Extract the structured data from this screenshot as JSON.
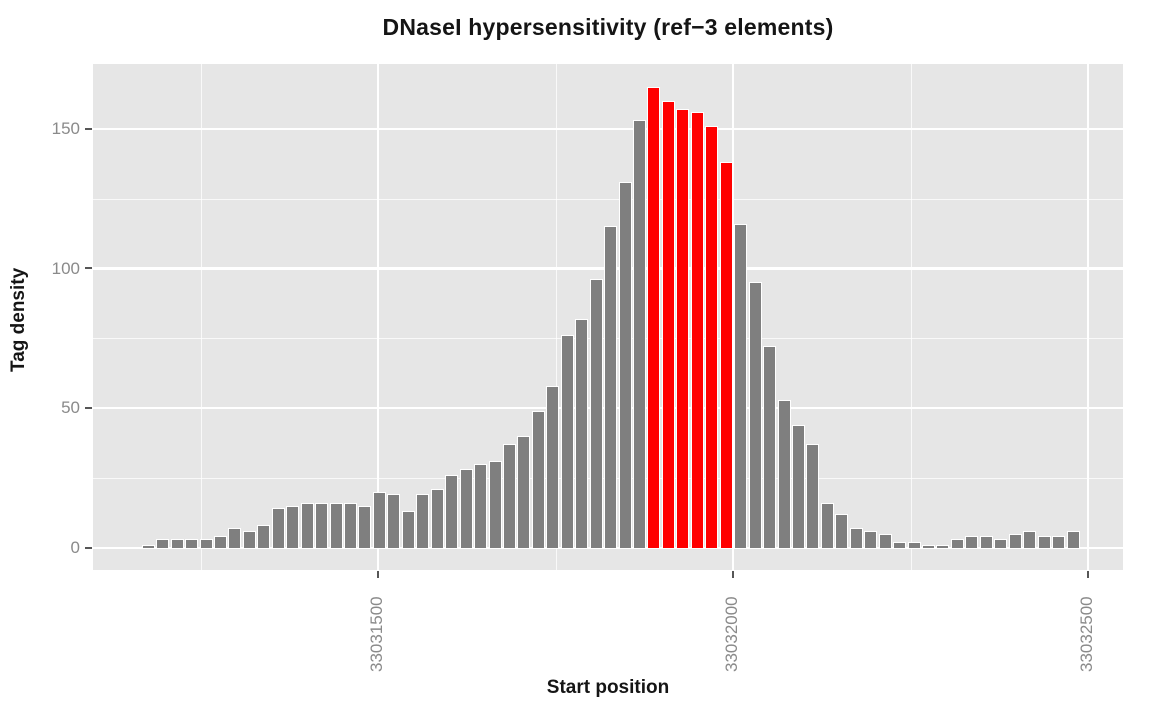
{
  "title": "DNaseI hypersensitivity (ref−3 elements)",
  "axes": {
    "x": {
      "label": "Start position",
      "tick_labels": [
        "33031500",
        "33032000",
        "33032500"
      ]
    },
    "y": {
      "label": "Tag density",
      "tick_labels": [
        "0",
        "50",
        "100",
        "150"
      ]
    }
  },
  "chart_data": {
    "type": "bar",
    "title": "DNaseI hypersensitivity (ref−3 elements)",
    "xlabel": "Start position",
    "ylabel": "Tag density",
    "x_tick_values": [
      33031500,
      33032000,
      33032500
    ],
    "y_tick_values": [
      0,
      50,
      100,
      150
    ],
    "ylim": [
      0,
      173
    ],
    "grid": "on",
    "legend": "none",
    "bin_width_bp_estimated": 20,
    "first_bin_start_estimated": 33031170,
    "values": [
      1,
      3,
      3,
      3,
      3,
      4,
      7,
      6,
      8,
      14,
      15,
      16,
      16,
      16,
      16,
      15,
      20,
      19,
      13,
      19,
      21,
      26,
      28,
      30,
      31,
      37,
      40,
      49,
      58,
      76,
      82,
      96,
      115,
      131,
      153,
      165,
      160,
      157,
      156,
      151,
      138,
      116,
      95,
      72,
      53,
      44,
      37,
      16,
      12,
      7,
      6,
      5,
      2,
      2,
      1,
      1,
      3,
      4,
      4,
      3,
      5,
      6,
      4,
      4,
      6
    ],
    "highlighted_indices": [
      35,
      36,
      37,
      38,
      39,
      40
    ],
    "highlighted_values": [
      165,
      160,
      157,
      156,
      151,
      138
    ],
    "y_minor_gridline_values": [
      25,
      75,
      125
    ],
    "x_minor_gridline_values": [
      33031250,
      33031750,
      33032250
    ]
  },
  "colors": {
    "bar": "#7F7F7F",
    "highlight": "#FF0000",
    "panel_background": "#E6E6E6",
    "gridline": "#FFFFFF",
    "tick_mark": "#565656",
    "tick_text": "#8A8A8A",
    "title_text": "#151515",
    "page_background": "#FFFFFF"
  }
}
